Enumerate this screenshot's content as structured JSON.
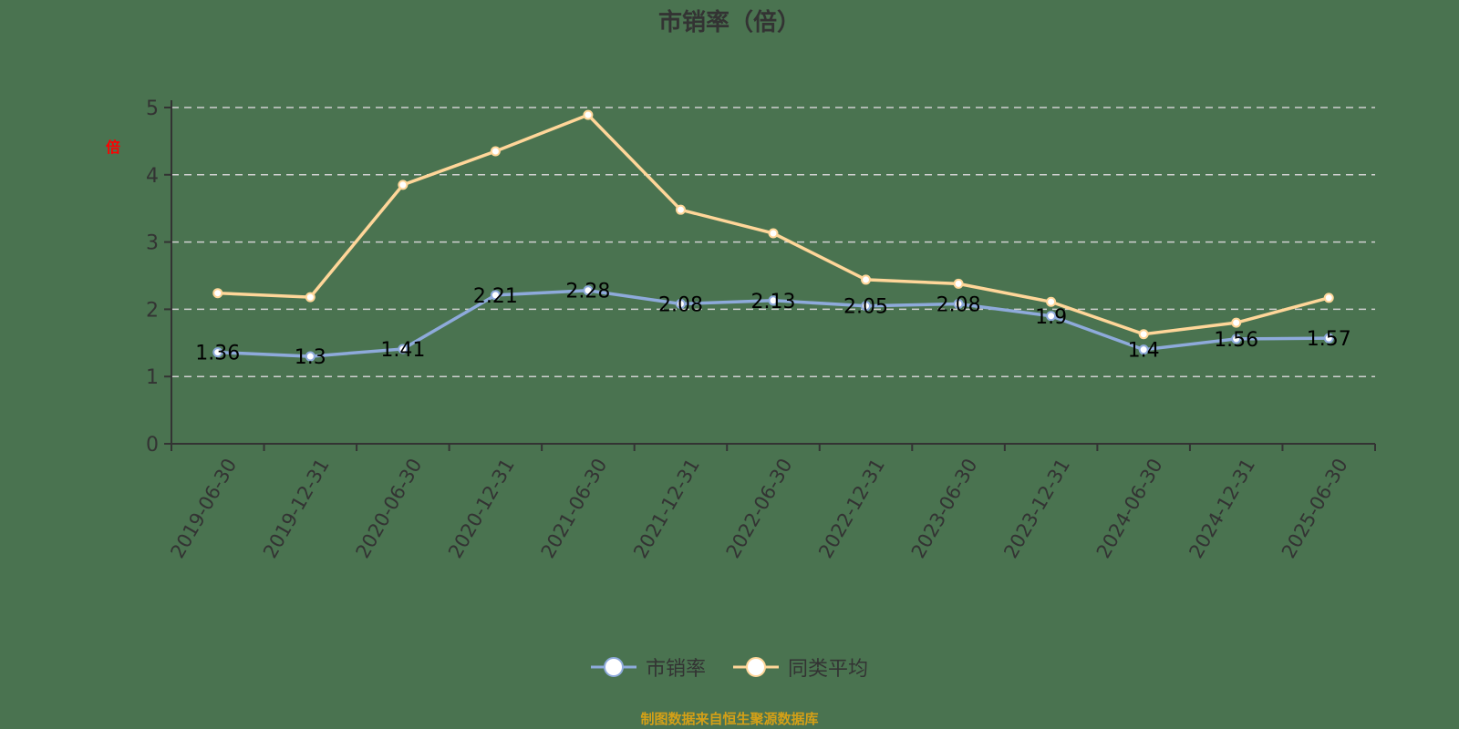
{
  "chart_data": {
    "type": "line",
    "title": "市销率（倍）",
    "ylabel": "倍",
    "xlabel": "",
    "ylim": [
      0,
      5
    ],
    "yticks": [
      0,
      1,
      2,
      3,
      4,
      5
    ],
    "grid": "horizontal dashed",
    "legend_position": "bottom",
    "categories": [
      "2019-06-30",
      "2019-12-31",
      "2020-06-30",
      "2020-12-31",
      "2021-06-30",
      "2021-12-31",
      "2022-06-30",
      "2022-12-31",
      "2023-06-30",
      "2023-12-31",
      "2024-06-30",
      "2024-12-31",
      "2025-06-30"
    ],
    "series": [
      {
        "name": "市销率",
        "color": "#8eaadb",
        "values": [
          1.36,
          1.3,
          1.41,
          2.21,
          2.28,
          2.08,
          2.13,
          2.05,
          2.08,
          1.9,
          1.4,
          1.56,
          1.57
        ],
        "labels_shown": true
      },
      {
        "name": "同类平均",
        "color": "#ffd699",
        "values": [
          2.24,
          2.18,
          3.85,
          4.35,
          4.89,
          3.48,
          3.13,
          2.44,
          2.38,
          2.11,
          1.63,
          1.8,
          2.17
        ],
        "labels_shown": false
      }
    ]
  },
  "header": {
    "title": "市销率（倍）"
  },
  "axis": {
    "unit_label": "倍"
  },
  "legend": {
    "items": [
      {
        "label": "市销率",
        "color": "#8eaadb"
      },
      {
        "label": "同类平均",
        "color": "#ffd699"
      }
    ]
  },
  "footer": {
    "source": "制图数据来自恒生聚源数据库"
  }
}
